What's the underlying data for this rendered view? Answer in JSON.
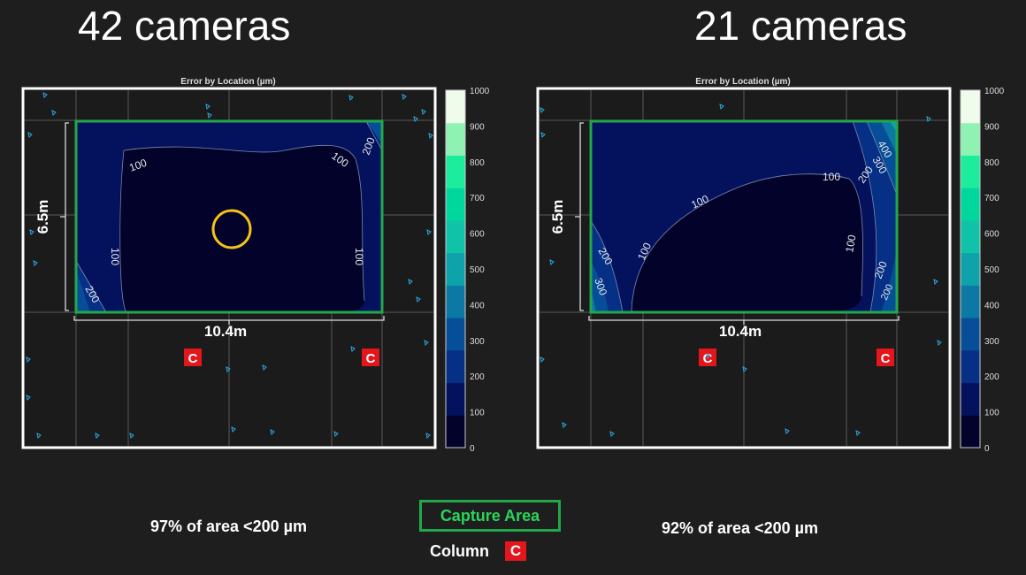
{
  "panels": [
    {
      "heading": "42 cameras",
      "caption": "97% of area <200 µm",
      "plot_title": "Error by Location (µm)",
      "capture_width_label": "10.4m",
      "capture_height_label": "6.5m",
      "contour_labels": [
        "100",
        "100",
        "100",
        "200",
        "100",
        "200"
      ],
      "column_label": "C"
    },
    {
      "heading": "21 cameras",
      "caption": "92% of area <200 µm",
      "plot_title": "Error by Location (µm)",
      "capture_width_label": "10.4m",
      "capture_height_label": "6.5m",
      "contour_labels": [
        "100",
        "100",
        "100",
        "200",
        "200",
        "300",
        "400",
        "200",
        "300",
        "100",
        "200"
      ],
      "column_label": "C"
    }
  ],
  "legend": {
    "capture_area_label": "Capture Area",
    "column_label": "Column",
    "column_badge": "C"
  },
  "chart_data": [
    {
      "type": "heatmap",
      "title": "Error by Location (µm)",
      "colorbar_ticks": [
        "1000",
        "900",
        "800",
        "700",
        "600",
        "500",
        "400",
        "300",
        "200",
        "100",
        "0"
      ],
      "colorbar_range": [
        0,
        1000
      ],
      "cameras": 42,
      "area_below_200um_percent": 97,
      "contour_levels": [
        100,
        200
      ]
    },
    {
      "type": "heatmap",
      "title": "Error by Location (µm)",
      "colorbar_ticks": [
        "1000",
        "900",
        "800",
        "700",
        "600",
        "500",
        "400",
        "300",
        "200",
        "100",
        "0"
      ],
      "colorbar_range": [
        0,
        1000
      ],
      "cameras": 21,
      "area_below_200um_percent": 92,
      "contour_levels": [
        100,
        200,
        300,
        400
      ]
    }
  ],
  "colors": {
    "background": "#1e1e1e",
    "capture_area": "#22a84a",
    "column_badge": "#e3161b",
    "highlight_circle": "#f2c418",
    "camera_marker": "#2aa7e0",
    "colormap": [
      "#02022a",
      "#04125e",
      "#062f86",
      "#064e98",
      "#0c78a4",
      "#0ea3aa",
      "#10c3a8",
      "#00d79c",
      "#1bed9c",
      "#8ef3b2",
      "#effcec"
    ]
  }
}
